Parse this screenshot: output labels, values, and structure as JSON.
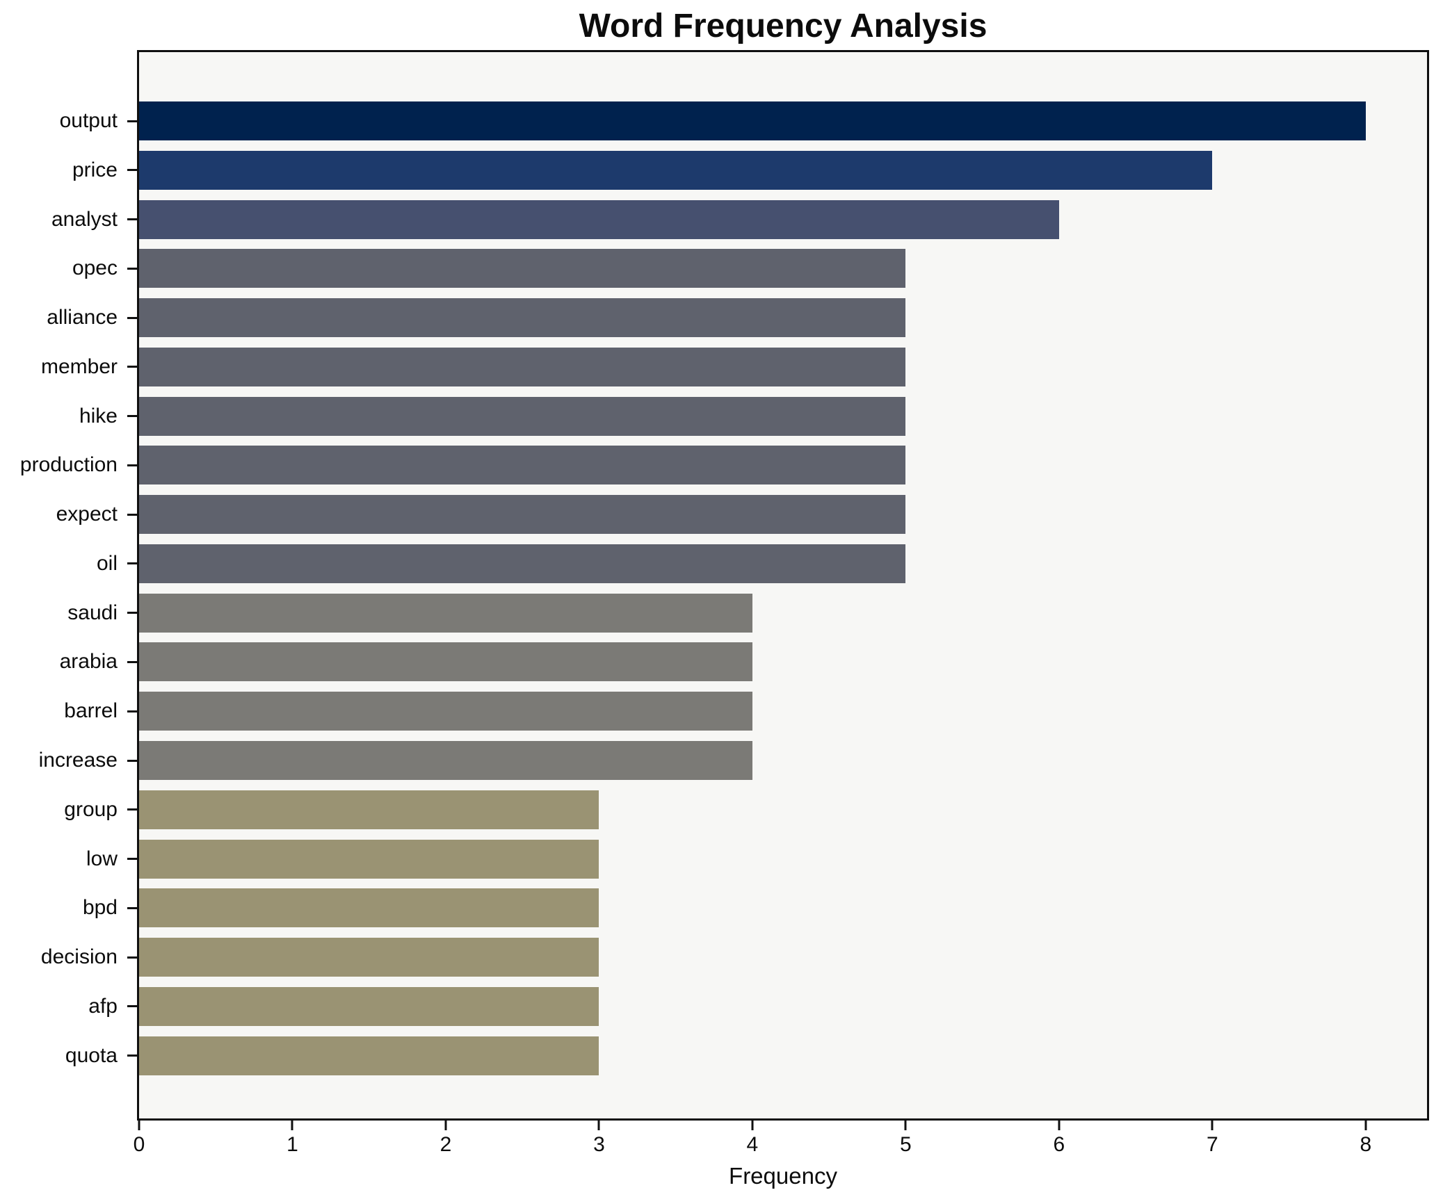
{
  "title": "Word Frequency Analysis",
  "chart_data": {
    "type": "bar",
    "orientation": "horizontal",
    "title": "Word Frequency Analysis",
    "xlabel": "Frequency",
    "ylabel": "",
    "categories": [
      "output",
      "price",
      "analyst",
      "opec",
      "alliance",
      "member",
      "hike",
      "production",
      "expect",
      "oil",
      "saudi",
      "arabia",
      "barrel",
      "increase",
      "group",
      "low",
      "bpd",
      "decision",
      "afp",
      "quota"
    ],
    "values": [
      8,
      7,
      6,
      5,
      5,
      5,
      5,
      5,
      5,
      5,
      4,
      4,
      4,
      4,
      3,
      3,
      3,
      3,
      3,
      3
    ],
    "xlim": [
      0,
      8.4
    ],
    "xticks": [
      0,
      1,
      2,
      3,
      4,
      5,
      6,
      7,
      8
    ],
    "grid": false,
    "legend": false,
    "colors_by_value": {
      "8": "#00224e",
      "7": "#1d3a6c",
      "6": "#46506f",
      "5": "#5f626d",
      "4": "#7b7a76",
      "3": "#9a9373"
    },
    "plot_background": "#f7f7f5",
    "figure_background": "#ffffff",
    "spine_color": "#101010"
  }
}
